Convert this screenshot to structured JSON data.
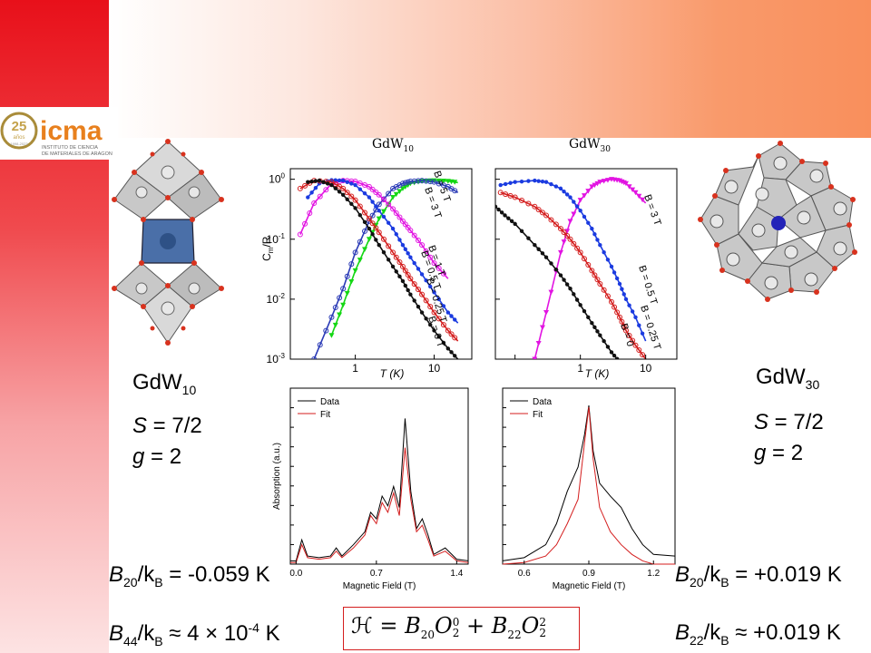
{
  "branding": {
    "logo_years": "25",
    "logo_years_sub": "años",
    "logo_years_range": "1998-2023",
    "logo_name": "icma",
    "logo_sub1": "INSTITUTO DE CIENCIA",
    "logo_sub2": "DE MATERIALES DE ARAGON"
  },
  "left_compound": {
    "name": "GdW",
    "name_sub": "10",
    "spin_label": "S",
    "spin_value": " = 7/2",
    "g_label": "g",
    "g_value": " = 2",
    "b20_label": "B",
    "b20_sub": "20",
    "b20_mid": "/k",
    "b20_sub2": "B",
    "b20_value": " = -0.059 K",
    "b44_label": "B",
    "b44_sub": "44",
    "b44_mid": "/k",
    "b44_sub2": "B",
    "b44_value": " ≈ 4 × 10",
    "b44_exp": "-4",
    "b44_unit": " K"
  },
  "right_compound": {
    "name": "GdW",
    "name_sub": "30",
    "spin_label": "S",
    "spin_value": " = 7/2",
    "g_label": "g",
    "g_value": " = 2",
    "b20_label": "B",
    "b20_sub": "20",
    "b20_mid": "/k",
    "b20_sub2": "B",
    "b20_value": " = +0.019 K",
    "b22_label": "B",
    "b22_sub": "22",
    "b22_mid": "/k",
    "b22_sub2": "B",
    "b22_value": " ≈ +0.019 K"
  },
  "hamiltonian": {
    "H": "ℋ",
    "eq": " = ",
    "t1": "B",
    "t1_sub": "20",
    "o1": "O",
    "o1_sup": "0",
    "o1_sub": "2",
    "plus": " + ",
    "t2": "B",
    "t2_sub": "22",
    "o2": "O",
    "o2_sup": "2",
    "o2_sub": "2"
  },
  "chart_data": [
    {
      "type": "line",
      "title": "GdW10",
      "title_main": "GdW",
      "title_sub": "10",
      "xlabel": "T (K)",
      "ylabel": "Cm/R",
      "xscale": "log",
      "yscale": "log",
      "xticks": [
        "1",
        "10"
      ],
      "yticks": [
        "10^0",
        "10^-1",
        "10^-2",
        "10^-3"
      ],
      "xlim": [
        0.15,
        30
      ],
      "ylim": [
        0.001,
        1.5
      ],
      "series": [
        {
          "name": "B = 5 T",
          "color": "#14d714",
          "x": [
            0.5,
            0.7,
            1,
            1.5,
            2,
            3,
            4,
            5,
            7,
            10,
            15,
            20
          ],
          "y": [
            0.0025,
            0.008,
            0.03,
            0.1,
            0.22,
            0.5,
            0.7,
            0.85,
            0.93,
            0.95,
            0.93,
            0.88
          ]
        },
        {
          "name": "B = 3 T",
          "color": "#2a3ab6",
          "x": [
            0.3,
            0.5,
            0.7,
            1,
            1.5,
            2,
            3,
            4,
            5,
            7,
            10,
            15,
            20
          ],
          "y": [
            0.001,
            0.005,
            0.015,
            0.06,
            0.2,
            0.38,
            0.7,
            0.85,
            0.92,
            0.95,
            0.9,
            0.75,
            0.6
          ]
        },
        {
          "name": "B = 1 T",
          "color": "#e214e2",
          "x": [
            0.2,
            0.3,
            0.5,
            0.7,
            1,
            1.5,
            2,
            3,
            4,
            5,
            7,
            10,
            15
          ],
          "y": [
            0.12,
            0.4,
            0.85,
            0.95,
            0.92,
            0.75,
            0.55,
            0.32,
            0.2,
            0.14,
            0.08,
            0.04,
            0.022
          ]
        },
        {
          "name": "B = 0.5 T",
          "color": "#1b3be0",
          "x": [
            0.25,
            0.35,
            0.5,
            0.7,
            1,
            1.5,
            2,
            3,
            4,
            5,
            7,
            10,
            15,
            20
          ],
          "y": [
            0.5,
            0.85,
            0.97,
            0.95,
            0.8,
            0.5,
            0.3,
            0.15,
            0.08,
            0.05,
            0.026,
            0.013,
            0.006,
            0.004
          ]
        },
        {
          "name": "B = 0.25 T",
          "color": "#d41e1e",
          "x": [
            0.2,
            0.3,
            0.5,
            0.7,
            1,
            1.5,
            2,
            3,
            4,
            5,
            7,
            10,
            15,
            20
          ],
          "y": [
            0.7,
            0.95,
            0.9,
            0.7,
            0.45,
            0.22,
            0.13,
            0.06,
            0.035,
            0.022,
            0.012,
            0.006,
            0.003,
            0.002
          ]
        },
        {
          "name": "B = 0 T",
          "color": "#111111",
          "x": [
            0.25,
            0.35,
            0.5,
            0.7,
            1,
            1.5,
            2,
            3,
            4,
            5,
            7,
            10,
            15,
            20
          ],
          "y": [
            0.9,
            0.95,
            0.8,
            0.55,
            0.33,
            0.15,
            0.08,
            0.035,
            0.02,
            0.012,
            0.006,
            0.003,
            0.0015,
            0.001
          ]
        }
      ]
    },
    {
      "type": "line",
      "title": "GdW30",
      "title_main": "GdW",
      "title_sub": "30",
      "xlabel": "T (K)",
      "xscale": "log",
      "yscale": "log",
      "xticks": [
        "1",
        "10"
      ],
      "xlim": [
        0.05,
        30
      ],
      "ylim": [
        0.001,
        1.5
      ],
      "series": [
        {
          "name": "B = 3 T",
          "color": "#e214e2",
          "x": [
            0.2,
            0.3,
            0.5,
            0.7,
            1,
            1.5,
            2,
            3,
            4,
            5,
            7,
            10
          ],
          "y": [
            0.001,
            0.006,
            0.06,
            0.2,
            0.45,
            0.75,
            0.9,
            1.0,
            0.95,
            0.85,
            0.6,
            0.4
          ]
        },
        {
          "name": "B = 0.5 T",
          "color": "#1b3be0",
          "x": [
            0.06,
            0.1,
            0.2,
            0.3,
            0.5,
            0.7,
            1,
            1.5,
            2,
            3,
            4,
            5,
            7,
            10
          ],
          "y": [
            0.8,
            0.9,
            0.95,
            0.9,
            0.7,
            0.5,
            0.3,
            0.15,
            0.08,
            0.035,
            0.018,
            0.01,
            0.005,
            0.002
          ]
        },
        {
          "name": "B = 0.25 T",
          "color": "#d41e1e",
          "x": [
            0.06,
            0.1,
            0.2,
            0.3,
            0.5,
            0.7,
            1,
            1.5,
            2,
            3,
            4,
            5,
            7,
            10
          ],
          "y": [
            0.6,
            0.5,
            0.35,
            0.25,
            0.15,
            0.1,
            0.06,
            0.03,
            0.018,
            0.009,
            0.005,
            0.003,
            0.0017,
            0.001
          ]
        },
        {
          "name": "B = 0",
          "color": "#111111",
          "x": [
            0.05,
            0.07,
            0.1,
            0.2,
            0.3,
            0.5,
            0.7,
            1,
            1.5,
            2,
            3,
            4,
            5
          ],
          "y": [
            0.35,
            0.25,
            0.18,
            0.08,
            0.05,
            0.025,
            0.015,
            0.008,
            0.004,
            0.0025,
            0.0013,
            0.0009,
            0.0006
          ]
        }
      ]
    },
    {
      "type": "line",
      "xlabel": "Magnetic Field (T)",
      "ylabel": "Absorption (a.u.)",
      "xticks": [
        "0.0",
        "0.7",
        "1.4"
      ],
      "xlim": [
        -0.05,
        1.5
      ],
      "legend": "top-left",
      "legend_data": "Data",
      "legend_fit": "Fit",
      "series": [
        {
          "name": "Data",
          "color": "#000000",
          "x": [
            -0.05,
            0.0,
            0.05,
            0.1,
            0.2,
            0.3,
            0.35,
            0.4,
            0.5,
            0.6,
            0.65,
            0.7,
            0.75,
            0.8,
            0.85,
            0.9,
            0.95,
            1.0,
            1.05,
            1.1,
            1.15,
            1.2,
            1.3,
            1.4,
            1.5
          ],
          "y": [
            0.02,
            0.02,
            0.15,
            0.05,
            0.04,
            0.05,
            0.1,
            0.05,
            0.12,
            0.2,
            0.32,
            0.28,
            0.42,
            0.36,
            0.48,
            0.35,
            0.9,
            0.45,
            0.22,
            0.28,
            0.18,
            0.06,
            0.1,
            0.03,
            0.02
          ]
        },
        {
          "name": "Fit",
          "color": "#d41e1e",
          "x": [
            -0.05,
            0.0,
            0.05,
            0.1,
            0.2,
            0.3,
            0.35,
            0.4,
            0.5,
            0.6,
            0.65,
            0.7,
            0.75,
            0.8,
            0.85,
            0.9,
            0.95,
            1.0,
            1.05,
            1.1,
            1.15,
            1.2,
            1.3,
            1.4,
            1.5
          ],
          "y": [
            0.01,
            0.01,
            0.12,
            0.04,
            0.03,
            0.04,
            0.08,
            0.04,
            0.1,
            0.18,
            0.3,
            0.25,
            0.38,
            0.32,
            0.44,
            0.3,
            0.72,
            0.4,
            0.2,
            0.24,
            0.15,
            0.05,
            0.08,
            0.02,
            0.01
          ]
        }
      ]
    },
    {
      "type": "line",
      "xlabel": "Magnetic Field (T)",
      "xticks": [
        "0.6",
        "0.9",
        "1.2"
      ],
      "xlim": [
        0.5,
        1.3
      ],
      "legend": "top-left",
      "legend_data": "Data",
      "legend_fit": "Fit",
      "series": [
        {
          "name": "Data",
          "color": "#000000",
          "x": [
            0.5,
            0.6,
            0.7,
            0.75,
            0.8,
            0.85,
            0.88,
            0.9,
            0.92,
            0.95,
            1.0,
            1.05,
            1.1,
            1.15,
            1.2,
            1.3
          ],
          "y": [
            0.02,
            0.04,
            0.12,
            0.25,
            0.45,
            0.6,
            0.8,
            0.98,
            0.7,
            0.5,
            0.42,
            0.35,
            0.22,
            0.12,
            0.06,
            0.05
          ]
        },
        {
          "name": "Fit",
          "color": "#d41e1e",
          "x": [
            0.5,
            0.6,
            0.7,
            0.75,
            0.8,
            0.85,
            0.88,
            0.9,
            0.92,
            0.95,
            1.0,
            1.05,
            1.1,
            1.15,
            1.2,
            1.3
          ],
          "y": [
            0.0,
            0.01,
            0.05,
            0.12,
            0.25,
            0.4,
            0.75,
            0.97,
            0.65,
            0.35,
            0.2,
            0.12,
            0.06,
            0.02,
            0.0,
            0.0
          ]
        }
      ]
    }
  ]
}
